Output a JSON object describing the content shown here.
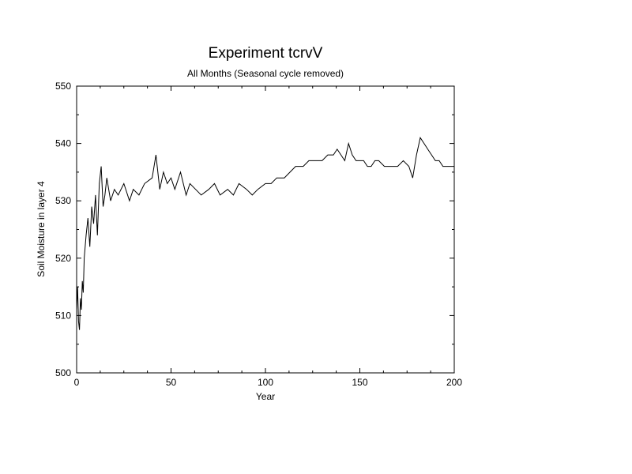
{
  "chart_data": {
    "type": "line",
    "title": "Experiment tcrvV",
    "subtitle": "All Months (Seasonal cycle removed)",
    "xlabel": "Year",
    "ylabel": "Soil Moisture in layer 4",
    "xlim": [
      0,
      200
    ],
    "ylim": [
      500,
      550
    ],
    "x_ticks": [
      0,
      50,
      100,
      150,
      200
    ],
    "y_ticks": [
      500,
      510,
      520,
      530,
      540,
      550
    ],
    "x_tick_labels": [
      "0",
      "50",
      "100",
      "150",
      "200"
    ],
    "y_tick_labels": [
      "500",
      "510",
      "520",
      "530",
      "540",
      "550"
    ],
    "grid": false,
    "line_color": "#000000",
    "series": [
      {
        "x": [
          0,
          0.5,
          1,
          1.5,
          2,
          2.5,
          3,
          3.5,
          4,
          5,
          6,
          7,
          8,
          9,
          10,
          11,
          12,
          13,
          14,
          15,
          16,
          18,
          20,
          22,
          25,
          28,
          30,
          33,
          36,
          40,
          42,
          44,
          46,
          48,
          50,
          52,
          55,
          58,
          60,
          63,
          66,
          70,
          73,
          76,
          80,
          83,
          86,
          90,
          93,
          96,
          100,
          103,
          106,
          110,
          113,
          116,
          120,
          123,
          126,
          130,
          133,
          136,
          138,
          140,
          142,
          144,
          146,
          148,
          150,
          152,
          154,
          156,
          158,
          160,
          163,
          166,
          170,
          173,
          176,
          178,
          180,
          182,
          184,
          186,
          188,
          190,
          192,
          194,
          196,
          198,
          200
        ],
        "y": [
          511,
          515,
          509,
          507.5,
          513,
          511,
          516,
          514,
          520,
          524,
          527,
          522,
          529,
          526,
          531,
          524,
          533,
          536,
          529,
          531,
          534,
          530,
          532,
          531,
          533,
          530,
          532,
          531,
          533,
          534,
          538,
          532,
          535,
          533,
          534,
          532,
          535,
          531,
          533,
          532,
          531,
          532,
          533,
          531,
          532,
          531,
          533,
          532,
          531,
          532,
          533,
          533,
          534,
          534,
          535,
          536,
          536,
          537,
          537,
          537,
          538,
          538,
          539,
          538,
          537,
          540,
          538,
          537,
          537,
          537,
          536,
          536,
          537,
          537,
          536,
          536,
          536,
          537,
          536,
          534,
          538,
          541,
          540,
          539,
          538,
          537,
          537,
          536,
          536,
          536,
          536
        ]
      }
    ]
  }
}
